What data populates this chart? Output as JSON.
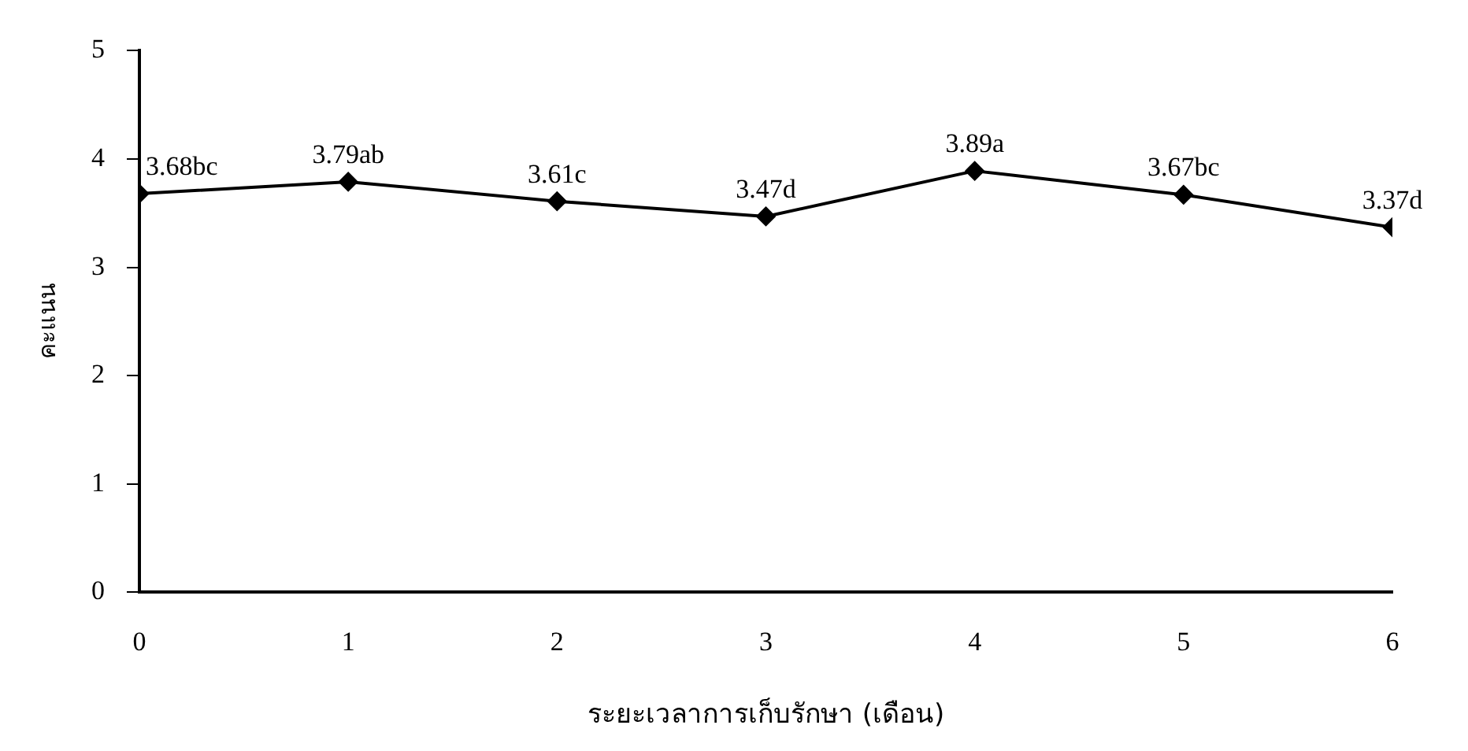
{
  "chart_data": {
    "type": "line",
    "xlabel": "ระยะเวลาการเก็บรักษา (เดือน)",
    "ylabel": "คะแนน",
    "x": [
      0,
      1,
      2,
      3,
      4,
      5,
      6
    ],
    "series": [
      {
        "color": "#000000",
        "values": [
          3.68,
          3.79,
          3.61,
          3.47,
          3.89,
          3.67,
          3.37
        ],
        "value_labels": [
          "3.68bc",
          "3.79ab",
          "3.61c",
          "3.47d",
          "3.89a",
          "3.67bc",
          "3.37d"
        ]
      }
    ],
    "xlim": [
      0,
      6
    ],
    "xticks": [
      0,
      1,
      2,
      3,
      4,
      5,
      6
    ],
    "ylim": [
      0,
      5
    ],
    "yticks": [
      0,
      1,
      2,
      3,
      4,
      5
    ],
    "grid": false,
    "legend": false,
    "marker": "diamond",
    "line_style": "solid"
  }
}
